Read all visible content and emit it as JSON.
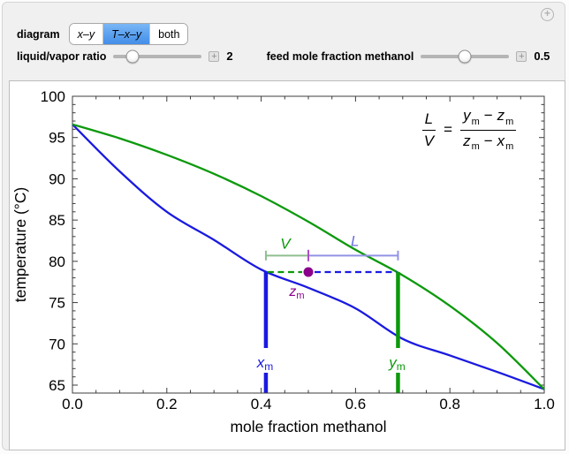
{
  "header": {
    "diagram_label": "diagram",
    "buttons": [
      {
        "label": "x–y",
        "selected": false
      },
      {
        "label": "T–x–y",
        "selected": true
      },
      {
        "label": "both",
        "selected": false
      }
    ],
    "icons": {
      "menu": "plus-circle-icon",
      "stepper": "plus-stepper-icon"
    }
  },
  "controls": {
    "liquid_vapor_ratio": {
      "label": "liquid/vapor ratio",
      "value": "2",
      "fraction": 0.22
    },
    "feed_mole_fraction": {
      "label": "feed mole fraction methanol",
      "value": "0.5",
      "fraction": 0.5
    }
  },
  "equation": {
    "L": "L",
    "V": "V",
    "equals": "=",
    "minus": "−",
    "num_a": "y",
    "num_b": "z",
    "den_a": "z",
    "den_b": "x",
    "sub": "m"
  },
  "chart_data": {
    "type": "line",
    "title": "",
    "xlabel": "mole fraction methanol",
    "ylabel": "temperature (°C)",
    "xlim": [
      0,
      1
    ],
    "ylim": [
      64,
      100
    ],
    "frame": true,
    "grid": false,
    "legend": "none",
    "x_ticks": [
      0,
      0.2,
      0.4,
      0.6,
      0.8,
      1
    ],
    "x_tick_labels": [
      "0.0",
      "0.2",
      "0.4",
      "0.6",
      "0.8",
      "1.0"
    ],
    "x_minor_step": 0.05,
    "y_ticks": [
      65,
      70,
      75,
      80,
      85,
      90,
      95,
      100
    ],
    "y_minor_step": 1,
    "series": [
      {
        "name": "bubble point (liquid) curve",
        "color": "#1a1ae0",
        "x": [
          0,
          0.1,
          0.2,
          0.3,
          0.4,
          0.5,
          0.6,
          0.7,
          0.8,
          0.9,
          1.0
        ],
        "T": [
          96.6,
          90.9,
          86.0,
          82.6,
          79.0,
          76.8,
          74.3,
          70.6,
          68.6,
          66.6,
          64.5
        ]
      },
      {
        "name": "dew point (vapor) curve",
        "color": "#0c990c",
        "x": [
          0,
          0.1,
          0.2,
          0.3,
          0.4,
          0.5,
          0.6,
          0.7,
          0.8,
          0.9,
          1.0
        ],
        "T": [
          96.6,
          94.9,
          92.9,
          90.6,
          87.9,
          84.8,
          81.4,
          78.3,
          74.6,
          70.1,
          64.5
        ]
      }
    ],
    "annotations": {
      "x_m": 0.41,
      "z_m": 0.5,
      "y_m": 0.69,
      "tie_temperature": 78.7,
      "ruler_temperature": 80.7,
      "labels": {
        "x": "x",
        "y": "y",
        "z": "z",
        "sub": "m",
        "V": "V",
        "L": "L"
      },
      "colors": {
        "liquid_line": "#1a1ae0",
        "vapor_line": "#0c990c",
        "feed_point": "#8b008b",
        "V_bar": "#8fbf8f",
        "L_bar": "#9292e6",
        "V_text": "#0c990c",
        "L_text": "#6e6ee0",
        "mid_tick": "#b050c8",
        "z_label": "#8b008b"
      }
    }
  }
}
